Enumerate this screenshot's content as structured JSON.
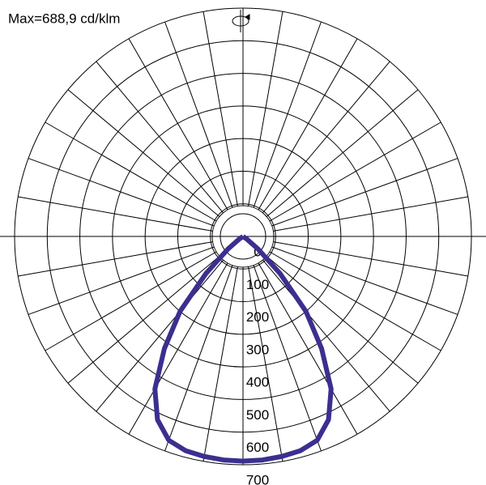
{
  "chart_data": {
    "type": "polar",
    "title": "Max=688,9 cd/klm",
    "x": [
      -60,
      -55,
      -50,
      -45,
      -40,
      -35,
      -30,
      -25,
      -20,
      -15,
      -10,
      -5,
      0,
      5,
      10,
      15,
      20,
      25,
      30,
      35,
      40,
      45,
      50,
      55,
      60
    ],
    "values": [
      0,
      15,
      60,
      160,
      300,
      420,
      540,
      620,
      665,
      680,
      685,
      688,
      688.9,
      688,
      685,
      680,
      665,
      620,
      540,
      420,
      300,
      160,
      60,
      15,
      0
    ],
    "color": "#3b2f8f",
    "rlim": [
      0,
      700
    ],
    "rticks": [
      0,
      100,
      200,
      300,
      400,
      500,
      600,
      700
    ],
    "grid": true
  }
}
